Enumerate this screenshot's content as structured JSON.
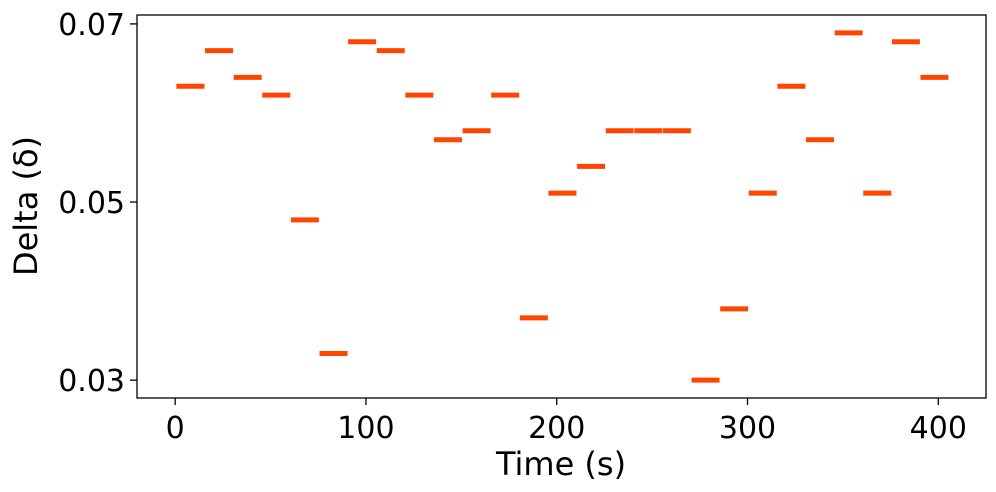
{
  "chart_data": {
    "type": "scatter",
    "marker": "horizontal-dash",
    "xlabel": "Time (s)",
    "ylabel": "Delta (δ)",
    "xlim": [
      -20,
      425
    ],
    "ylim": [
      0.028,
      0.071
    ],
    "xticks": [
      0,
      100,
      200,
      300,
      400
    ],
    "xtick_labels": [
      "0",
      "100",
      "200",
      "300",
      "400"
    ],
    "yticks": [
      0.03,
      0.05,
      0.07
    ],
    "ytick_labels": [
      "0.03",
      "0.05",
      "0.07"
    ],
    "grid": false,
    "series": [
      {
        "color": "#ff4500",
        "points": [
          {
            "x": 8,
            "y": 0.063
          },
          {
            "x": 23,
            "y": 0.067
          },
          {
            "x": 38,
            "y": 0.064
          },
          {
            "x": 53,
            "y": 0.062
          },
          {
            "x": 68,
            "y": 0.048
          },
          {
            "x": 83,
            "y": 0.033
          },
          {
            "x": 98,
            "y": 0.068
          },
          {
            "x": 113,
            "y": 0.067
          },
          {
            "x": 128,
            "y": 0.062
          },
          {
            "x": 143,
            "y": 0.057
          },
          {
            "x": 158,
            "y": 0.058
          },
          {
            "x": 173,
            "y": 0.062
          },
          {
            "x": 188,
            "y": 0.037
          },
          {
            "x": 203,
            "y": 0.051
          },
          {
            "x": 218,
            "y": 0.054
          },
          {
            "x": 233,
            "y": 0.058
          },
          {
            "x": 248,
            "y": 0.058
          },
          {
            "x": 263,
            "y": 0.058
          },
          {
            "x": 278,
            "y": 0.03
          },
          {
            "x": 293,
            "y": 0.038
          },
          {
            "x": 308,
            "y": 0.051
          },
          {
            "x": 323,
            "y": 0.063
          },
          {
            "x": 338,
            "y": 0.057
          },
          {
            "x": 353,
            "y": 0.069
          },
          {
            "x": 368,
            "y": 0.051
          },
          {
            "x": 383,
            "y": 0.068
          },
          {
            "x": 398,
            "y": 0.064
          }
        ]
      }
    ]
  }
}
